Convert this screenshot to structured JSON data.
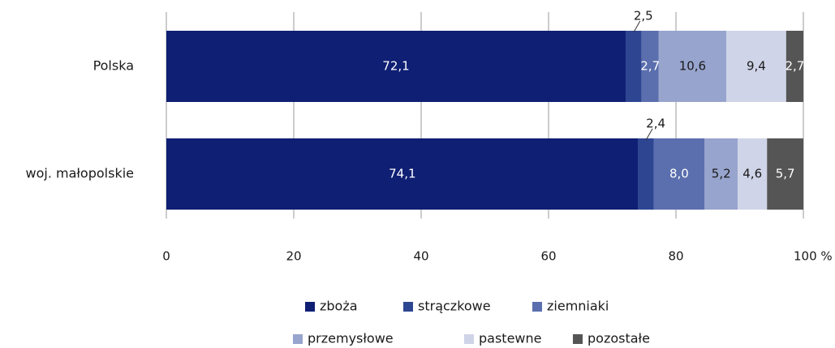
{
  "chart_data": {
    "type": "stacked_bar_horizontal",
    "categories": [
      "Polska",
      "woj. małopolskie"
    ],
    "series": [
      {
        "name": "zboża",
        "color": "#0f1f74",
        "values": [
          72.1,
          74.1
        ],
        "value_labels": [
          "72,1",
          "74,1"
        ]
      },
      {
        "name": "strączkowe",
        "color": "#2e4592",
        "values": [
          2.5,
          2.4
        ],
        "value_labels": [
          "2,5",
          "2,4"
        ]
      },
      {
        "name": "ziemniaki",
        "color": "#5b6fae",
        "values": [
          2.7,
          8.0
        ],
        "value_labels": [
          "2,7",
          "8,0"
        ]
      },
      {
        "name": "przemysłowe",
        "color": "#97a4cd",
        "values": [
          10.6,
          5.2
        ],
        "value_labels": [
          "10,6",
          "5,2"
        ]
      },
      {
        "name": "pastewne",
        "color": "#cfd4e8",
        "values": [
          9.4,
          4.6
        ],
        "value_labels": [
          "9,4",
          "4,6"
        ]
      },
      {
        "name": "pozostałe",
        "color": "#555555",
        "values": [
          2.7,
          5.7
        ],
        "value_labels": [
          "2,7",
          "5,7"
        ]
      }
    ],
    "xlim": [
      0,
      100
    ],
    "xticks": [
      0,
      20,
      40,
      60,
      80,
      {
        "value": 100,
        "label": "100 %"
      }
    ],
    "grid": true
  }
}
